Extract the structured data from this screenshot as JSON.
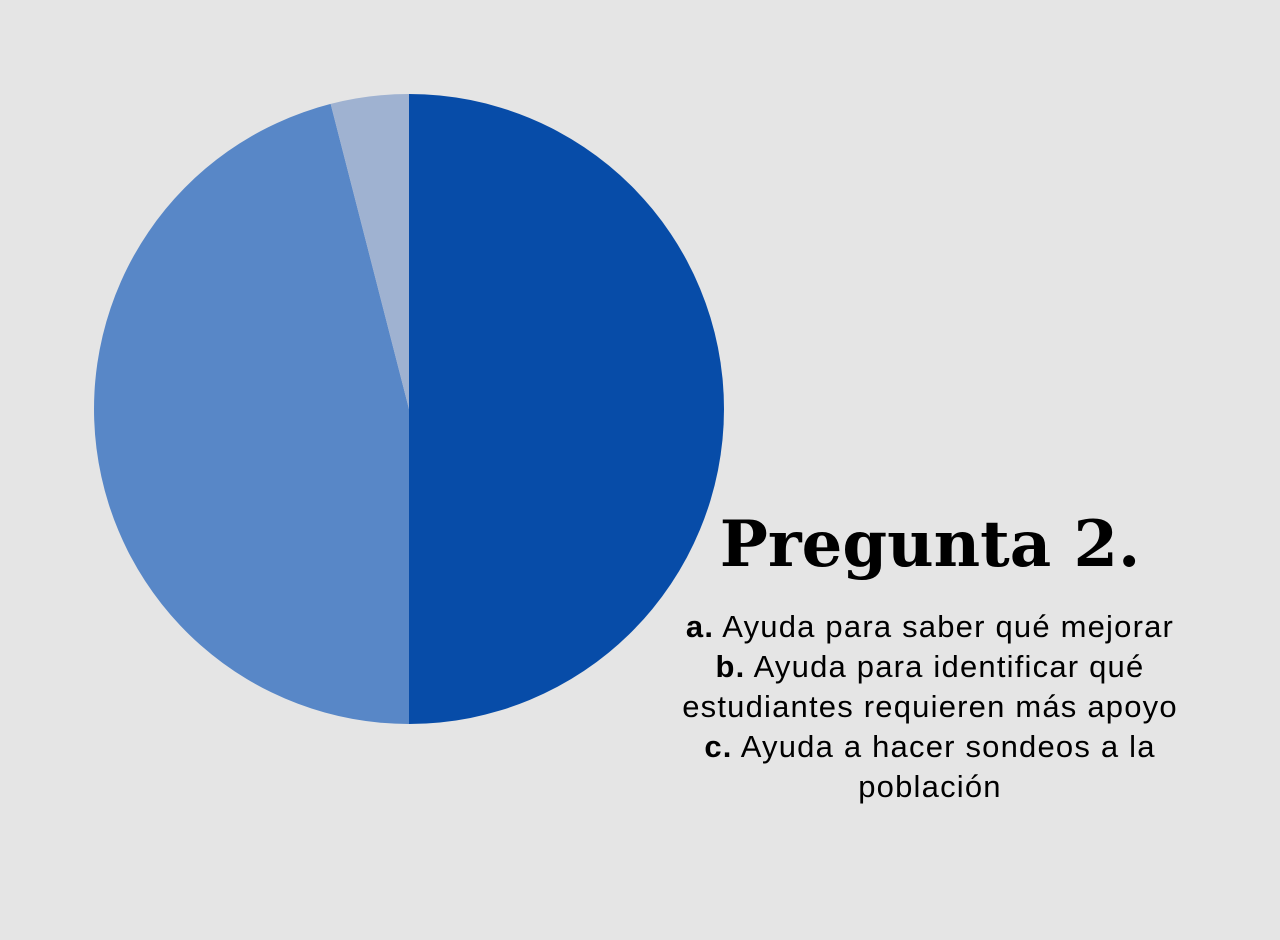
{
  "chart_data": {
    "type": "pie",
    "title": "Pregunta 2.",
    "categories": [
      "a.",
      "b.",
      "c."
    ],
    "values": [
      50,
      46,
      4
    ],
    "colors": [
      "#074ca8",
      "#5887c7",
      "#9fb2d1"
    ],
    "legend": [
      {
        "key": "a.",
        "text": "Ayuda para saber qué mejorar"
      },
      {
        "key": "b.",
        "text": "Ayuda para identificar qué estudiantes requieren más apoyo"
      },
      {
        "key": "c.",
        "text": "Ayuda a hacer sondeos a la población"
      }
    ]
  }
}
